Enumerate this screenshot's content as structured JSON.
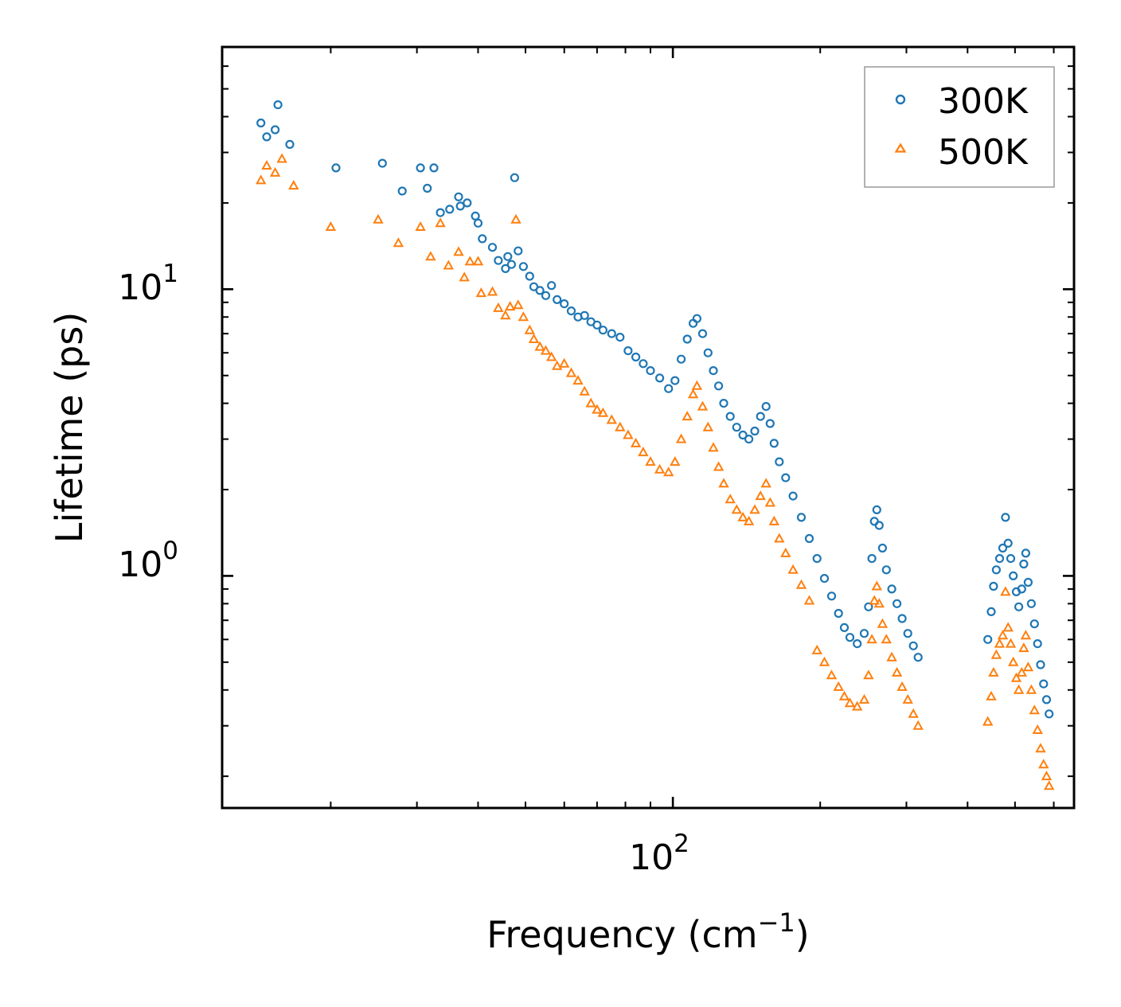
{
  "chart_data": {
    "type": "scatter",
    "xscale": "log",
    "yscale": "log",
    "xlim": [
      12,
      660
    ],
    "ylim": [
      0.155,
      70
    ],
    "xlabel": {
      "main": "Frequency (cm",
      "sup": "−1",
      "close": ")"
    },
    "ylabel": "Lifetime (ps)",
    "x_ticks": [
      {
        "value": 100,
        "base": "10",
        "exp": "2"
      }
    ],
    "y_ticks": [
      {
        "value": 1,
        "base": "10",
        "exp": "0"
      },
      {
        "value": 10,
        "base": "10",
        "exp": "1"
      }
    ],
    "legend_position": "top-right",
    "series": [
      {
        "name": "300K",
        "marker": "circle",
        "color": "#1f77b4",
        "points": [
          [
            14.4,
            38
          ],
          [
            14.8,
            34
          ],
          [
            15.4,
            36
          ],
          [
            15.6,
            44
          ],
          [
            16.5,
            32
          ],
          [
            20.5,
            26.5
          ],
          [
            25.5,
            27.5
          ],
          [
            28,
            22
          ],
          [
            30.5,
            26.5
          ],
          [
            31.5,
            22.5
          ],
          [
            32.5,
            26.5
          ],
          [
            33.5,
            18.5
          ],
          [
            35,
            19
          ],
          [
            36.5,
            21
          ],
          [
            36.8,
            19.5
          ],
          [
            38,
            20
          ],
          [
            39.5,
            18
          ],
          [
            40,
            17
          ],
          [
            40.8,
            15
          ],
          [
            42.8,
            14
          ],
          [
            44,
            12.6
          ],
          [
            45.5,
            11.8
          ],
          [
            46,
            13
          ],
          [
            46.8,
            12.2
          ],
          [
            47.5,
            24.5
          ],
          [
            48.3,
            13.6
          ],
          [
            49.5,
            12
          ],
          [
            51,
            11.1
          ],
          [
            52,
            10.2
          ],
          [
            53.5,
            9.9
          ],
          [
            55,
            9.5
          ],
          [
            56.5,
            10.3
          ],
          [
            58,
            9.2
          ],
          [
            60,
            8.9
          ],
          [
            62,
            8.4
          ],
          [
            64,
            8.0
          ],
          [
            66,
            8.1
          ],
          [
            68,
            7.7
          ],
          [
            70,
            7.5
          ],
          [
            72,
            7.2
          ],
          [
            75,
            7.0
          ],
          [
            78,
            6.8
          ],
          [
            81,
            6.1
          ],
          [
            84,
            5.8
          ],
          [
            87,
            5.5
          ],
          [
            90,
            5.2
          ],
          [
            94,
            4.9
          ],
          [
            98,
            4.5
          ],
          [
            101,
            4.8
          ],
          [
            104,
            5.7
          ],
          [
            107,
            6.7
          ],
          [
            110,
            7.6
          ],
          [
            112,
            7.9
          ],
          [
            115,
            7.0
          ],
          [
            118,
            6.0
          ],
          [
            121,
            5.2
          ],
          [
            124,
            4.6
          ],
          [
            127,
            4.0
          ],
          [
            131,
            3.6
          ],
          [
            135,
            3.3
          ],
          [
            139,
            3.1
          ],
          [
            143,
            3.0
          ],
          [
            147,
            3.2
          ],
          [
            151,
            3.6
          ],
          [
            155,
            3.9
          ],
          [
            158,
            3.4
          ],
          [
            161,
            2.9
          ],
          [
            165,
            2.5
          ],
          [
            170,
            2.2
          ],
          [
            176,
            1.9
          ],
          [
            183,
            1.6
          ],
          [
            190,
            1.35
          ],
          [
            197,
            1.15
          ],
          [
            204,
            0.98
          ],
          [
            211,
            0.85
          ],
          [
            218,
            0.74
          ],
          [
            224,
            0.66
          ],
          [
            230,
            0.61
          ],
          [
            238,
            0.58
          ],
          [
            246,
            0.63
          ],
          [
            251,
            0.78
          ],
          [
            255,
            1.15
          ],
          [
            258,
            1.55
          ],
          [
            261,
            1.7
          ],
          [
            264,
            1.5
          ],
          [
            268,
            1.25
          ],
          [
            273,
            1.05
          ],
          [
            280,
            0.9
          ],
          [
            287,
            0.8
          ],
          [
            294,
            0.71
          ],
          [
            302,
            0.63
          ],
          [
            310,
            0.57
          ],
          [
            317,
            0.52
          ],
          [
            440,
            0.6
          ],
          [
            447,
            0.75
          ],
          [
            452,
            0.92
          ],
          [
            458,
            1.05
          ],
          [
            465,
            1.15
          ],
          [
            472,
            1.25
          ],
          [
            478,
            1.6
          ],
          [
            484,
            1.3
          ],
          [
            490,
            1.15
          ],
          [
            496,
            1.0
          ],
          [
            503,
            0.88
          ],
          [
            509,
            0.78
          ],
          [
            516,
            0.9
          ],
          [
            521,
            1.1
          ],
          [
            526,
            1.2
          ],
          [
            532,
            0.95
          ],
          [
            540,
            0.8
          ],
          [
            548,
            0.68
          ],
          [
            556,
            0.58
          ],
          [
            564,
            0.49
          ],
          [
            572,
            0.42
          ],
          [
            580,
            0.37
          ],
          [
            587,
            0.33
          ]
        ]
      },
      {
        "name": "500K",
        "marker": "triangle",
        "color": "#ff7f0e",
        "points": [
          [
            14.4,
            24
          ],
          [
            14.8,
            27
          ],
          [
            15.4,
            25.5
          ],
          [
            15.9,
            28.5
          ],
          [
            16.8,
            23
          ],
          [
            20,
            16.5
          ],
          [
            25,
            17.5
          ],
          [
            27.5,
            14.5
          ],
          [
            30.5,
            16.5
          ],
          [
            32,
            13
          ],
          [
            33.5,
            17
          ],
          [
            34.8,
            12.1
          ],
          [
            36.5,
            13.5
          ],
          [
            37.5,
            11
          ],
          [
            38.5,
            12.5
          ],
          [
            40,
            12.5
          ],
          [
            40.6,
            9.7
          ],
          [
            42.8,
            9.8
          ],
          [
            44,
            8.6
          ],
          [
            45.5,
            8.1
          ],
          [
            46.5,
            8.7
          ],
          [
            47.8,
            17.5
          ],
          [
            48.3,
            8.8
          ],
          [
            49.5,
            8.0
          ],
          [
            51,
            7.2
          ],
          [
            52,
            6.7
          ],
          [
            53.5,
            6.3
          ],
          [
            55,
            6.1
          ],
          [
            56.5,
            5.8
          ],
          [
            58,
            5.4
          ],
          [
            60,
            5.5
          ],
          [
            62,
            5.1
          ],
          [
            64,
            4.8
          ],
          [
            66,
            4.4
          ],
          [
            68,
            4.0
          ],
          [
            70,
            3.8
          ],
          [
            72,
            3.7
          ],
          [
            75,
            3.5
          ],
          [
            78,
            3.3
          ],
          [
            81,
            3.1
          ],
          [
            84,
            2.9
          ],
          [
            87,
            2.7
          ],
          [
            90,
            2.5
          ],
          [
            94,
            2.35
          ],
          [
            98,
            2.3
          ],
          [
            101,
            2.5
          ],
          [
            104,
            3.0
          ],
          [
            107,
            3.6
          ],
          [
            110,
            4.3
          ],
          [
            112,
            4.6
          ],
          [
            115,
            3.9
          ],
          [
            118,
            3.3
          ],
          [
            121,
            2.8
          ],
          [
            124,
            2.4
          ],
          [
            127,
            2.1
          ],
          [
            131,
            1.85
          ],
          [
            135,
            1.7
          ],
          [
            139,
            1.6
          ],
          [
            143,
            1.55
          ],
          [
            147,
            1.7
          ],
          [
            151,
            1.9
          ],
          [
            155,
            2.1
          ],
          [
            158,
            1.8
          ],
          [
            161,
            1.55
          ],
          [
            165,
            1.35
          ],
          [
            170,
            1.2
          ],
          [
            176,
            1.05
          ],
          [
            183,
            0.93
          ],
          [
            190,
            0.82
          ],
          [
            197,
            0.55
          ],
          [
            204,
            0.5
          ],
          [
            211,
            0.45
          ],
          [
            218,
            0.41
          ],
          [
            224,
            0.38
          ],
          [
            230,
            0.36
          ],
          [
            238,
            0.35
          ],
          [
            246,
            0.37
          ],
          [
            251,
            0.45
          ],
          [
            255,
            0.6
          ],
          [
            258,
            0.82
          ],
          [
            261,
            0.92
          ],
          [
            264,
            0.8
          ],
          [
            268,
            0.68
          ],
          [
            273,
            0.6
          ],
          [
            280,
            0.52
          ],
          [
            287,
            0.46
          ],
          [
            294,
            0.41
          ],
          [
            302,
            0.37
          ],
          [
            310,
            0.33
          ],
          [
            317,
            0.3
          ],
          [
            440,
            0.31
          ],
          [
            447,
            0.38
          ],
          [
            452,
            0.46
          ],
          [
            458,
            0.53
          ],
          [
            465,
            0.58
          ],
          [
            472,
            0.62
          ],
          [
            478,
            0.88
          ],
          [
            484,
            0.66
          ],
          [
            490,
            0.58
          ],
          [
            496,
            0.5
          ],
          [
            503,
            0.44
          ],
          [
            509,
            0.4
          ],
          [
            516,
            0.46
          ],
          [
            521,
            0.56
          ],
          [
            526,
            0.62
          ],
          [
            532,
            0.48
          ],
          [
            540,
            0.4
          ],
          [
            548,
            0.34
          ],
          [
            556,
            0.29
          ],
          [
            564,
            0.25
          ],
          [
            572,
            0.22
          ],
          [
            580,
            0.2
          ],
          [
            587,
            0.185
          ]
        ]
      }
    ]
  }
}
